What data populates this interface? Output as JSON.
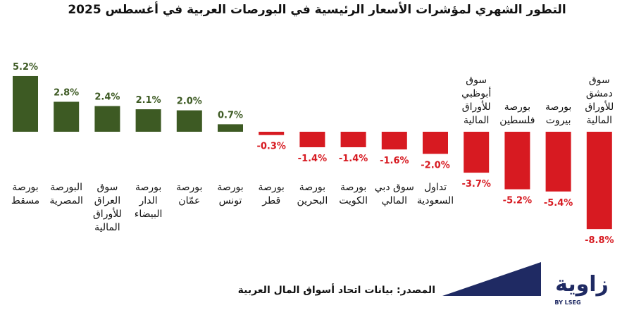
{
  "chart_data": {
    "type": "bar",
    "title": "التطور الشهري لمؤشرات الأسعار الرئيسية في البورصات العربية في أغسطس 2025",
    "categories": [
      "بورصة مسقط",
      "البورصة المصرية",
      "سوق العراق للأوراق المالية",
      "بورصة الدار البيضاء",
      "بورصة عمّان",
      "بورصة تونس",
      "بورصة قطر",
      "بورصة البحرين",
      "بورصة الكويت",
      "سوق دبي المالي",
      "تداول السعودية",
      "سوق أبوظبي للأوراق المالية",
      "بورصة فلسطين",
      "بورصة بيروت",
      "سوق دمشق للأوراق المالية"
    ],
    "label_lines": [
      [
        "بورصة",
        "مسقط"
      ],
      [
        "البورصة",
        "المصرية"
      ],
      [
        "سوق",
        "العراق",
        "للأوراق",
        "المالية"
      ],
      [
        "بورصة",
        "الدار",
        "البيضاء"
      ],
      [
        "بورصة",
        "عمّان"
      ],
      [
        "بورصة",
        "تونس"
      ],
      [
        "بورصة",
        "قطر"
      ],
      [
        "بورصة",
        "البحرين"
      ],
      [
        "بورصة",
        "الكويت"
      ],
      [
        "سوق دبي",
        "المالي"
      ],
      [
        "تداول",
        "السعودية"
      ],
      [
        "سوق",
        "أبوظبي",
        "للأوراق",
        "المالية"
      ],
      [
        "بورصة",
        "فلسطين"
      ],
      [
        "بورصة",
        "بيروت"
      ],
      [
        "سوق",
        "دمشق",
        "للأوراق",
        "المالية"
      ]
    ],
    "values": [
      5.2,
      2.8,
      2.4,
      2.1,
      2.0,
      0.7,
      -0.3,
      -1.4,
      -1.4,
      -1.6,
      -2.0,
      -3.7,
      -5.2,
      -5.4,
      -8.8
    ],
    "value_labels": [
      "5.2%",
      "2.8%",
      "2.4%",
      "2.1%",
      "2.0%",
      "0.7%",
      "-0.3%",
      "-1.4%",
      "-1.4%",
      "-1.6%",
      "-2.0%",
      "-3.7%",
      "-5.2%",
      "-5.4%",
      "-8.8%"
    ],
    "ylim": [
      -8.8,
      5.2
    ],
    "grid": false,
    "legend": "none"
  },
  "colors": {
    "positive": "#3d5a23",
    "negative": "#d71a21",
    "logo_dark": "#1f2a63"
  },
  "source": "المصدر: بيانات اتحاد أسواق المال العربية",
  "logo": {
    "wordmark": "زاوية",
    "tagline": "BY LSEG"
  }
}
